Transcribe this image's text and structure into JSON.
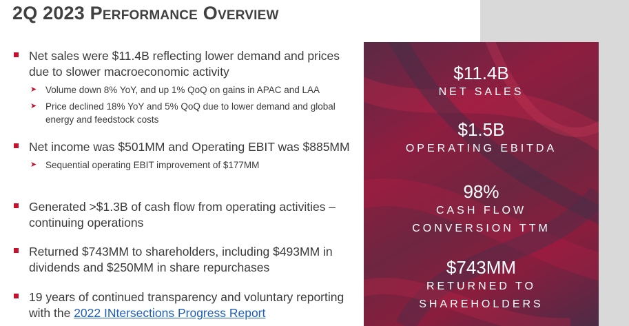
{
  "title": "2Q 2023 Performance Overview",
  "bullets": [
    {
      "text": "Net sales were $11.4B reflecting lower demand and prices due to slower macroeconomic activity",
      "subs": [
        "Volume down 8% YoY, and up 1% QoQ on gains in APAC and LAA",
        "Price declined 18% YoY and 5% QoQ due to lower demand and global energy and feedstock costs"
      ]
    },
    {
      "text": "Net income was $501MM and Operating EBIT was $885MM",
      "subs": [
        "Sequential operating EBIT improvement of $177MM"
      ]
    },
    {
      "text": "Generated >$1.3B of cash flow from operating activities – continuing operations"
    },
    {
      "text": "Returned $743MM to shareholders, including $493MM in dividends and $250MM in share repurchases"
    },
    {
      "text_prefix": "19 years of continued transparency and voluntary reporting with the ",
      "link_text": "2022 INtersections Progress Report"
    }
  ],
  "metrics": [
    {
      "value": "$11.4B",
      "label": "NET SALES"
    },
    {
      "value": "$1.5B",
      "label": "OPERATING EBITDA"
    },
    {
      "value": "98%",
      "label_line1": "CASH FLOW",
      "label_line2": "CONVERSION TTM"
    },
    {
      "value": "$743MM",
      "label_line1": "RETURNED TO",
      "label_line2": "SHAREHOLDERS"
    }
  ],
  "colors": {
    "bullet_marker": "#c8102e",
    "panel_crimson": "#8e1d40",
    "panel_plum": "#4d2b45",
    "link": "#1f5fb4"
  },
  "icons": [
    "square-bullet-icon",
    "arrowhead-sub-bullet-icon"
  ]
}
